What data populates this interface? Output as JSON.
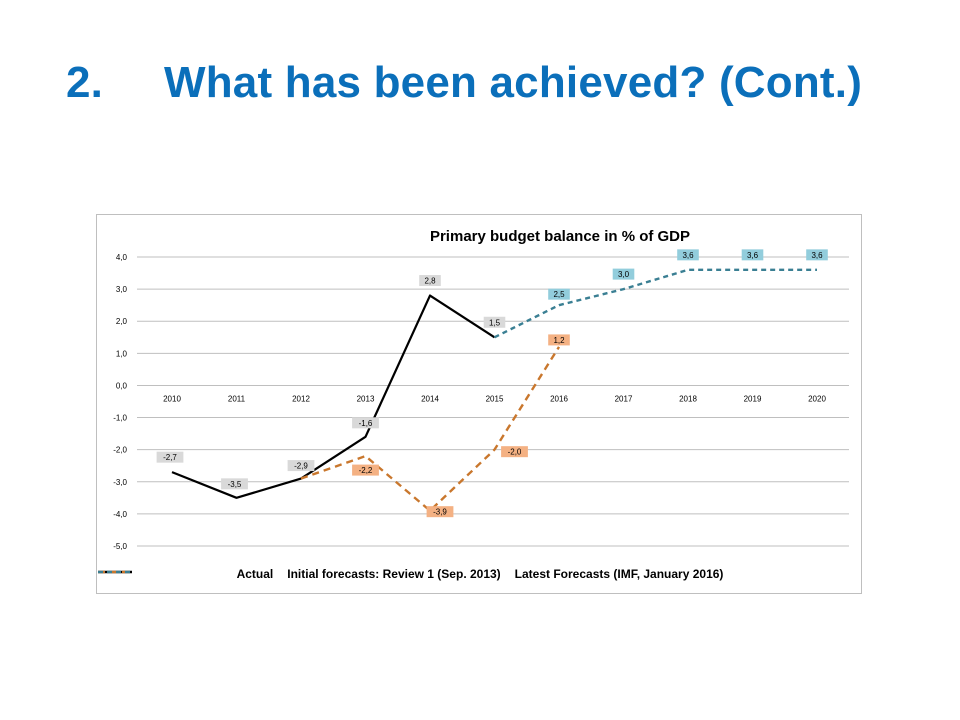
{
  "slide": {
    "number": "2.",
    "title": "What has been achieved? (Cont.)"
  },
  "colors": {
    "title": "#0b6fba",
    "actual": "#000000",
    "initial": "#c9772d",
    "latest": "#3a7f93",
    "initial_label_bg": "#f4b183",
    "latest_label_bg": "#92cddc",
    "actual_label_bg": "#d9d9d9"
  },
  "chart_data": {
    "type": "line",
    "title": "Primary budget balance in % of GDP",
    "categories": [
      "2010",
      "2011",
      "2012",
      "2013",
      "2014",
      "2015",
      "2016",
      "2017",
      "2018",
      "2019",
      "2020"
    ],
    "ylim": [
      -5.0,
      4.0
    ],
    "yticks": [
      "4,0",
      "3,0",
      "2,0",
      "1,0",
      "0,0",
      "-1,0",
      "-2,0",
      "-3,0",
      "-4,0",
      "-5,0"
    ],
    "ytick_values": [
      4,
      3,
      2,
      1,
      0,
      -1,
      -2,
      -3,
      -4,
      -5
    ],
    "grid": true,
    "legend_position": "bottom",
    "series": [
      {
        "name": "Actual",
        "style": "solid",
        "values": [
          -2.7,
          -3.5,
          -2.9,
          -1.6,
          2.8,
          1.5,
          null,
          null,
          null,
          null,
          null
        ],
        "labels": [
          "-2,7",
          "-3,5",
          "-2,9",
          "-1,6",
          "2,8",
          "1,5",
          null,
          null,
          null,
          null,
          null
        ]
      },
      {
        "name": "Initial forecasts: Review 1 (Sep. 2013)",
        "style": "dashed",
        "values": [
          null,
          null,
          -2.9,
          -2.2,
          -3.9,
          -2.0,
          1.2,
          null,
          null,
          null,
          null
        ],
        "labels": [
          null,
          null,
          null,
          "-2,2",
          "-3,9",
          "-2,0",
          "1,2",
          null,
          null,
          null,
          null
        ]
      },
      {
        "name": "Latest Forecasts (IMF, January 2016)",
        "style": "dashed",
        "values": [
          null,
          null,
          null,
          null,
          null,
          1.5,
          2.5,
          3.0,
          3.6,
          3.6,
          3.6
        ],
        "labels": [
          null,
          null,
          null,
          null,
          null,
          null,
          "2,5",
          "3,0",
          "3,6",
          "3,6",
          "3,6"
        ]
      }
    ]
  }
}
